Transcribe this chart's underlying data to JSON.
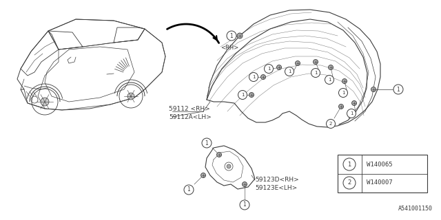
{
  "bg_color": "#ffffff",
  "line_color": "#3a3a3a",
  "title_code": "A541001150",
  "legend": [
    {
      "num": "1",
      "code": "W140065"
    },
    {
      "num": "2",
      "code": "W140007"
    }
  ]
}
